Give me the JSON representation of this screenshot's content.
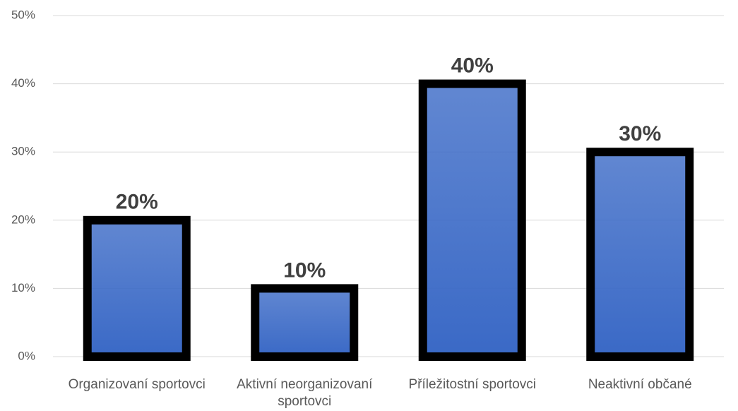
{
  "chart_data": {
    "type": "bar",
    "categories": [
      "Organizovaní sportovci",
      "Aktivní neorganizovaní sportovci",
      "Příležitostní sportovci",
      "Neaktivní občané"
    ],
    "values": [
      20,
      10,
      40,
      30
    ],
    "value_labels": [
      "20%",
      "10%",
      "40%",
      "30%"
    ],
    "color": "#3a69c6",
    "edgecolor": "#000000",
    "ylim": [
      0,
      50
    ],
    "yticks": [
      {
        "value": 0,
        "label": "0%"
      },
      {
        "value": 10,
        "label": "10%"
      },
      {
        "value": 20,
        "label": "20%"
      },
      {
        "value": 30,
        "label": "30%"
      },
      {
        "value": 40,
        "label": "40%"
      },
      {
        "value": 50,
        "label": "50%"
      }
    ],
    "grid": true
  }
}
